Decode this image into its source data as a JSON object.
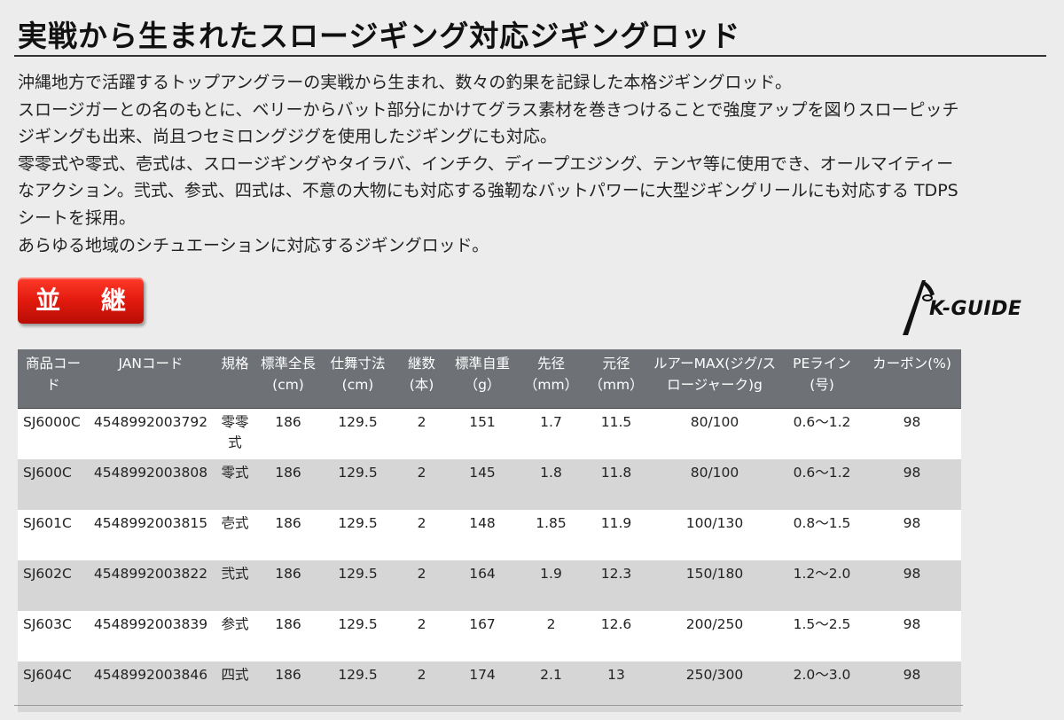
{
  "title": "実戦から生まれたスロージギング対応ジギングロッド",
  "description": [
    "沖縄地方で活躍するトップアングラーの実戦から生まれ、数々の釣果を記録した本格ジギングロッド。",
    "スロージガーとの名のもとに、ベリーからバット部分にかけてグラス素材を巻きつけることで強度アップを図りスローピッチ",
    "ジギングも出来、尚且つセミロングジグを使用したジギングにも対応。",
    "零零式や零式、壱式は、スロージギングやタイラバ、インチク、ディープエジング、テンヤ等に使用でき、オールマイティー",
    "なアクション。弐式、参式、四式は、不意の大物にも対応する強靭なバットパワーに大型ジギングリールにも対応する TDPS",
    "シートを採用。",
    "あらゆる地域のシチュエーションに対応するジギングロッド。"
  ],
  "badge": "並 継",
  "logo": {
    "text": "K-GUIDE",
    "icon": "guide-ring-logo"
  },
  "table": {
    "headers": [
      "商品コード",
      "JANコード",
      "規格",
      "標準全長(cm)",
      "仕舞寸法(cm)",
      "継数(本)",
      "標準自重（g）",
      "先径（mm）",
      "元径（mm）",
      "ルアーMAX(ジグ/スロージャーク)g",
      "PEライン(号)",
      "カーボン(%)"
    ],
    "rows": [
      [
        "SJ6000C",
        "4548992003792",
        "零零式",
        "186",
        "129.5",
        "2",
        "151",
        "1.7",
        "11.5",
        "80/100",
        "0.6～1.2",
        "98"
      ],
      [
        "SJ600C",
        "4548992003808",
        "零式",
        "186",
        "129.5",
        "2",
        "145",
        "1.8",
        "11.8",
        "80/100",
        "0.6～1.2",
        "98"
      ],
      [
        "SJ601C",
        "4548992003815",
        "壱式",
        "186",
        "129.5",
        "2",
        "148",
        "1.85",
        "11.9",
        "100/130",
        "0.8～1.5",
        "98"
      ],
      [
        "SJ602C",
        "4548992003822",
        "弐式",
        "186",
        "129.5",
        "2",
        "164",
        "1.9",
        "12.3",
        "150/180",
        "1.2～2.0",
        "98"
      ],
      [
        "SJ603C",
        "4548992003839",
        "参式",
        "186",
        "129.5",
        "2",
        "167",
        "2",
        "12.6",
        "200/250",
        "1.5～2.5",
        "98"
      ],
      [
        "SJ604C",
        "4548992003846",
        "四式",
        "186",
        "129.5",
        "2",
        "174",
        "2.1",
        "13",
        "250/300",
        "2.0～3.0",
        "98"
      ]
    ]
  }
}
